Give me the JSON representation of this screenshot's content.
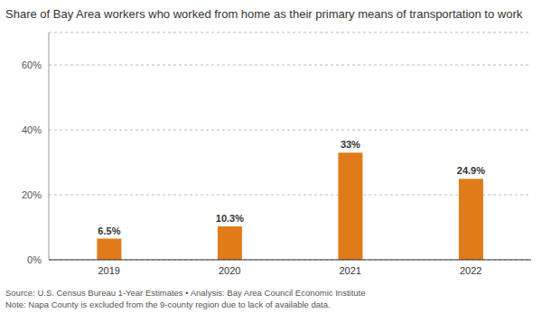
{
  "chart_data": {
    "type": "bar",
    "title": "Share of Bay Area workers who worked from home as their primary means of transportation to work",
    "categories": [
      "2019",
      "2020",
      "2021",
      "2022"
    ],
    "values": [
      6.5,
      10.3,
      33,
      24.9
    ],
    "value_labels": [
      "6.5%",
      "10.3%",
      "33%",
      "24.9%"
    ],
    "data_labels": true,
    "color": "#e07b1a",
    "ylim": [
      0,
      70
    ],
    "yticks": [
      {
        "value": 0,
        "label": "0%"
      },
      {
        "value": 20,
        "label": "20%"
      },
      {
        "value": 40,
        "label": "40%"
      },
      {
        "value": 60,
        "label": "60%"
      }
    ],
    "grid": true,
    "annotations": [
      "Source: U.S. Census Bureau 1-Year Estimates • Analysis: Bay Area Council Economic Institute",
      "Note: Napa County is excluded from the 9-county region due to lack of available data."
    ]
  }
}
